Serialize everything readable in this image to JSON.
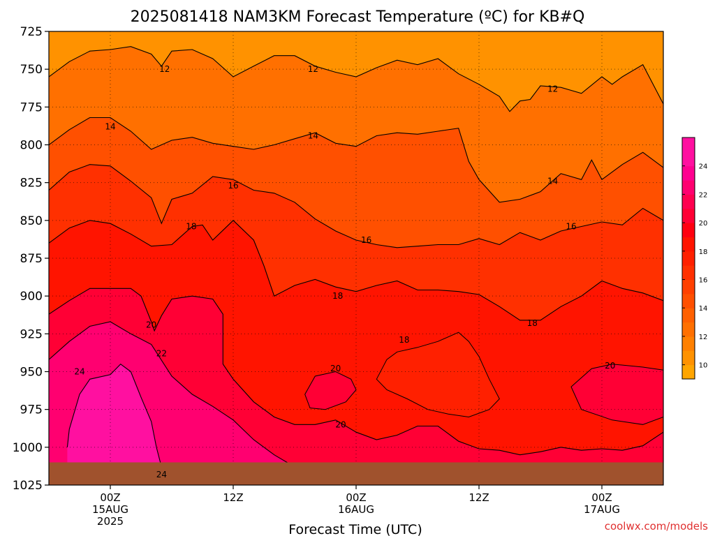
{
  "chart_data": {
    "type": "heatmap",
    "title": "2025081418 NAM3KM Forecast Temperature (ºC) for KB#Q",
    "xlabel": "Forecast Time (UTC)",
    "ylabel": "",
    "credit": "coolwx.com/models",
    "y_axis": {
      "unit": "hPa",
      "inverted": true,
      "range": [
        725,
        1025
      ],
      "ticks": [
        "725",
        "750",
        "775",
        "800",
        "825",
        "850",
        "875",
        "900",
        "925",
        "950",
        "975",
        "1000",
        "1025"
      ]
    },
    "x_axis": {
      "range_hours": [
        -6,
        54
      ],
      "ticks": [
        {
          "hour": 0,
          "lines": [
            "00Z",
            "15AUG",
            "2025"
          ]
        },
        {
          "hour": 12,
          "lines": [
            "12Z"
          ]
        },
        {
          "hour": 24,
          "lines": [
            "00Z",
            "16AUG"
          ]
        },
        {
          "hour": 36,
          "lines": [
            "12Z"
          ]
        },
        {
          "hour": 48,
          "lines": [
            "00Z",
            "17AUG"
          ]
        }
      ]
    },
    "grid": "dotted",
    "colorbar": {
      "position": "right",
      "ticks": [
        "24",
        "22",
        "20",
        "18",
        "16",
        "14",
        "12",
        "10"
      ],
      "bands": [
        {
          "min": 9,
          "max": 10,
          "color": "#ffa500"
        },
        {
          "min": 10,
          "max": 11,
          "color": "#ff9200"
        },
        {
          "min": 11,
          "max": 12,
          "color": "#ff8000"
        },
        {
          "min": 12,
          "max": 13,
          "color": "#ff7000"
        },
        {
          "min": 13,
          "max": 14,
          "color": "#ff6000"
        },
        {
          "min": 14,
          "max": 15,
          "color": "#ff5000"
        },
        {
          "min": 15,
          "max": 16,
          "color": "#ff4000"
        },
        {
          "min": 16,
          "max": 17,
          "color": "#ff3000"
        },
        {
          "min": 17,
          "max": 18,
          "color": "#ff2000"
        },
        {
          "min": 18,
          "max": 19,
          "color": "#ff1400"
        },
        {
          "min": 19,
          "max": 20,
          "color": "#ff0010"
        },
        {
          "min": 20,
          "max": 21,
          "color": "#ff0035"
        },
        {
          "min": 21,
          "max": 22,
          "color": "#ff0050"
        },
        {
          "min": 22,
          "max": 23,
          "color": "#ff0070"
        },
        {
          "min": 23,
          "max": 24,
          "color": "#ff0090"
        },
        {
          "min": 24,
          "max": 26,
          "color": "#ff10a0"
        }
      ]
    },
    "contour_levels": [
      12,
      14,
      16,
      18,
      20,
      22,
      24
    ],
    "contour_labels": [
      {
        "text": "12",
        "hour": 5.3,
        "pressure": 750
      },
      {
        "text": "12",
        "hour": 19.8,
        "pressure": 750
      },
      {
        "text": "12",
        "hour": 43.2,
        "pressure": 763
      },
      {
        "text": "14",
        "hour": 0.0,
        "pressure": 788
      },
      {
        "text": "14",
        "hour": 19.8,
        "pressure": 794
      },
      {
        "text": "14",
        "hour": 43.2,
        "pressure": 824
      },
      {
        "text": "16",
        "hour": 12.0,
        "pressure": 827
      },
      {
        "text": "16",
        "hour": 25.0,
        "pressure": 863
      },
      {
        "text": "16",
        "hour": 45.0,
        "pressure": 854
      },
      {
        "text": "18",
        "hour": 7.9,
        "pressure": 854
      },
      {
        "text": "18",
        "hour": 22.2,
        "pressure": 900
      },
      {
        "text": "18",
        "hour": 28.7,
        "pressure": 929
      },
      {
        "text": "18",
        "hour": 41.2,
        "pressure": 918
      },
      {
        "text": "20",
        "hour": 4.0,
        "pressure": 919
      },
      {
        "text": "20",
        "hour": 22.0,
        "pressure": 948
      },
      {
        "text": "20",
        "hour": 22.5,
        "pressure": 985
      },
      {
        "text": "20",
        "hour": 48.8,
        "pressure": 946
      },
      {
        "text": "22",
        "hour": 5.0,
        "pressure": 938
      },
      {
        "text": "24",
        "hour": -3.0,
        "pressure": 950
      },
      {
        "text": "24",
        "hour": 5.0,
        "pressure": 1018
      }
    ],
    "isotherms": {
      "12": [
        [
          -6,
          755
        ],
        [
          -4,
          745
        ],
        [
          -2,
          738
        ],
        [
          0,
          737
        ],
        [
          2,
          735
        ],
        [
          4,
          740
        ],
        [
          5,
          748
        ],
        [
          6,
          738
        ],
        [
          8,
          737
        ],
        [
          10,
          743
        ],
        [
          12,
          755
        ],
        [
          14,
          748
        ],
        [
          16,
          741
        ],
        [
          18,
          741
        ],
        [
          20,
          748
        ],
        [
          22,
          752
        ],
        [
          24,
          755
        ],
        [
          26,
          749
        ],
        [
          28,
          744
        ],
        [
          30,
          747
        ],
        [
          32,
          743
        ],
        [
          34,
          753
        ],
        [
          36,
          760
        ],
        [
          38,
          768
        ],
        [
          39,
          778
        ],
        [
          40,
          771
        ],
        [
          41,
          770
        ],
        [
          42,
          761
        ],
        [
          44,
          762
        ],
        [
          46,
          766
        ],
        [
          48,
          755
        ],
        [
          49,
          760
        ],
        [
          50,
          755
        ],
        [
          52,
          747
        ],
        [
          54,
          773
        ]
      ],
      "14": [
        [
          -6,
          800
        ],
        [
          -4,
          790
        ],
        [
          -2,
          782
        ],
        [
          0,
          782
        ],
        [
          2,
          791
        ],
        [
          4,
          803
        ],
        [
          6,
          797
        ],
        [
          8,
          795
        ],
        [
          10,
          799
        ],
        [
          12,
          801
        ],
        [
          14,
          803
        ],
        [
          16,
          800
        ],
        [
          18,
          796
        ],
        [
          20,
          792
        ],
        [
          22,
          799
        ],
        [
          24,
          801
        ],
        [
          26,
          794
        ],
        [
          28,
          792
        ],
        [
          30,
          793
        ],
        [
          32,
          791
        ],
        [
          34,
          789
        ],
        [
          35,
          811
        ],
        [
          36,
          823
        ],
        [
          38,
          838
        ],
        [
          40,
          836
        ],
        [
          42,
          831
        ],
        [
          44,
          819
        ],
        [
          46,
          823
        ],
        [
          47,
          810
        ],
        [
          48,
          823
        ],
        [
          50,
          813
        ],
        [
          52,
          805
        ],
        [
          54,
          815
        ]
      ],
      "16": [
        [
          -6,
          830
        ],
        [
          -4,
          818
        ],
        [
          -2,
          813
        ],
        [
          0,
          814
        ],
        [
          2,
          824
        ],
        [
          4,
          835
        ],
        [
          5,
          852
        ],
        [
          6,
          836
        ],
        [
          8,
          832
        ],
        [
          10,
          821
        ],
        [
          12,
          823
        ],
        [
          14,
          830
        ],
        [
          16,
          832
        ],
        [
          18,
          838
        ],
        [
          20,
          849
        ],
        [
          22,
          857
        ],
        [
          24,
          863
        ],
        [
          26,
          866
        ],
        [
          28,
          868
        ],
        [
          30,
          867
        ],
        [
          32,
          866
        ],
        [
          34,
          866
        ],
        [
          36,
          862
        ],
        [
          38,
          866
        ],
        [
          40,
          858
        ],
        [
          42,
          863
        ],
        [
          44,
          857
        ],
        [
          46,
          854
        ],
        [
          48,
          851
        ],
        [
          50,
          853
        ],
        [
          52,
          842
        ],
        [
          54,
          850
        ]
      ],
      "18": [
        [
          -6,
          865
        ],
        [
          -4,
          855
        ],
        [
          -2,
          850
        ],
        [
          0,
          852
        ],
        [
          2,
          859
        ],
        [
          4,
          867
        ],
        [
          6,
          866
        ],
        [
          8,
          854
        ],
        [
          9,
          853
        ],
        [
          10,
          863
        ],
        [
          12,
          850
        ],
        [
          14,
          863
        ],
        [
          15,
          880
        ],
        [
          16,
          900
        ],
        [
          18,
          893
        ],
        [
          20,
          889
        ],
        [
          22,
          894
        ],
        [
          24,
          897
        ],
        [
          26,
          893
        ],
        [
          28,
          890
        ],
        [
          30,
          896
        ],
        [
          32,
          896
        ],
        [
          34,
          897
        ],
        [
          36,
          899
        ],
        [
          38,
          907
        ],
        [
          40,
          916
        ],
        [
          42,
          916
        ],
        [
          44,
          907
        ],
        [
          46,
          900
        ],
        [
          48,
          890
        ],
        [
          50,
          895
        ],
        [
          52,
          898
        ],
        [
          54,
          903
        ]
      ],
      "20": [
        [
          -6,
          912
        ],
        [
          -4,
          903
        ],
        [
          -2,
          895
        ],
        [
          0,
          895
        ],
        [
          2,
          895
        ],
        [
          3,
          900
        ],
        [
          4,
          917
        ],
        [
          4.3,
          923
        ],
        [
          5,
          913
        ],
        [
          6,
          902
        ],
        [
          8,
          900
        ],
        [
          10,
          902
        ],
        [
          11,
          912
        ],
        [
          11,
          945
        ],
        [
          12,
          955
        ],
        [
          14,
          970
        ],
        [
          16,
          980
        ],
        [
          18,
          985
        ],
        [
          20,
          985
        ],
        [
          22,
          982
        ],
        [
          24,
          990
        ],
        [
          26,
          995
        ],
        [
          28,
          992
        ],
        [
          30,
          986
        ],
        [
          32,
          986
        ],
        [
          34,
          996
        ],
        [
          36,
          1001
        ],
        [
          38,
          1002
        ],
        [
          40,
          1005
        ],
        [
          42,
          1003
        ],
        [
          44,
          1000
        ],
        [
          46,
          1002
        ],
        [
          48,
          1001
        ],
        [
          50,
          1002
        ],
        [
          52,
          999
        ],
        [
          54,
          990
        ]
      ],
      "22": [
        [
          -6,
          942
        ],
        [
          -4,
          930
        ],
        [
          -2,
          920
        ],
        [
          0,
          917
        ],
        [
          2,
          925
        ],
        [
          4,
          932
        ],
        [
          6,
          953
        ],
        [
          8,
          965
        ],
        [
          10,
          973
        ],
        [
          12,
          982
        ],
        [
          14,
          995
        ],
        [
          16,
          1005
        ],
        [
          18,
          1013
        ],
        [
          20,
          1017
        ],
        [
          22,
          1020
        ]
      ],
      "24": [
        [
          -4.2,
          1000
        ],
        [
          -4,
          988
        ],
        [
          -3,
          965
        ],
        [
          -2,
          955
        ],
        [
          0,
          952
        ],
        [
          1,
          945
        ],
        [
          2,
          950
        ],
        [
          3,
          967
        ],
        [
          4,
          983
        ],
        [
          4.5,
          1000
        ],
        [
          5,
          1013
        ],
        [
          6,
          1014
        ],
        [
          8,
          1016
        ],
        [
          10,
          1017
        ]
      ]
    },
    "regions": [
      {
        "temperature_band": [
          12,
          14
        ],
        "note": "upper-level orange region from about 750 to 800 hPa"
      },
      {
        "temperature_band": [
          19,
          20
        ],
        "note": "isolated pockets near 955 hPa at 20Z 15AUG and near 950 hPa at 00Z 17AUG"
      },
      {
        "temperature_band": [
          17,
          18
        ],
        "note": "cooler pocket centered near 950 hPa between 02Z and 18Z 16AUG"
      }
    ],
    "ground": {
      "color": "#a0522d",
      "note": "terrain band near the bottom of the profile"
    }
  }
}
